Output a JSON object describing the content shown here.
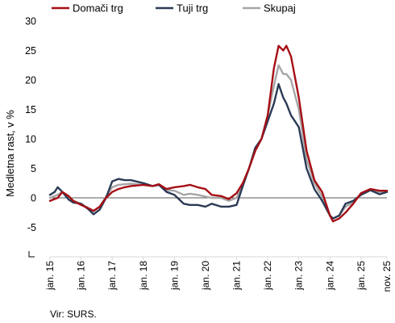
{
  "chart_data": {
    "type": "line",
    "title": "",
    "xlabel": "",
    "ylabel": "Medletna rast, v %",
    "ylim": [
      -10,
      30
    ],
    "yticks": [
      30,
      25,
      20,
      15,
      10,
      5,
      0,
      -5
    ],
    "ytick_labels": [
      "30",
      "25",
      "20",
      "15",
      "10",
      "5",
      "0",
      "-5"
    ],
    "x_start": 2015,
    "x_end": 2025.833,
    "xticks": [
      {
        "value": 2015,
        "label": "jan. 15"
      },
      {
        "value": 2016,
        "label": "jan. 16"
      },
      {
        "value": 2017,
        "label": "jan. 17"
      },
      {
        "value": 2018,
        "label": "jan. 18"
      },
      {
        "value": 2019,
        "label": "jan. 19"
      },
      {
        "value": 2020,
        "label": "jan. 20"
      },
      {
        "value": 2021,
        "label": "jan. 21"
      },
      {
        "value": 2022,
        "label": "jan. 22"
      },
      {
        "value": 2023,
        "label": "jan. 23"
      },
      {
        "value": 2024,
        "label": "jan. 24"
      },
      {
        "value": 2025,
        "label": "jan. 25"
      },
      {
        "value": 2025.833,
        "label": "nov. 25"
      }
    ],
    "grid": false,
    "legend_position": "top",
    "series": [
      {
        "name": "Domači trg",
        "color": "#a50f15",
        "points": [
          [
            2015,
            -0.5
          ],
          [
            2015.25,
            0
          ],
          [
            2015.4,
            1
          ],
          [
            2015.6,
            0.3
          ],
          [
            2015.75,
            -0.5
          ],
          [
            2016,
            -1.2
          ],
          [
            2016.25,
            -1.8
          ],
          [
            2016.4,
            -2.2
          ],
          [
            2016.6,
            -1.5
          ],
          [
            2016.8,
            0
          ],
          [
            2017,
            1
          ],
          [
            2017.2,
            1.5
          ],
          [
            2017.4,
            1.8
          ],
          [
            2017.6,
            2
          ],
          [
            2018,
            2.2
          ],
          [
            2018.3,
            2
          ],
          [
            2018.5,
            2.3
          ],
          [
            2018.75,
            1.5
          ],
          [
            2019,
            1.8
          ],
          [
            2019.3,
            2
          ],
          [
            2019.5,
            2.2
          ],
          [
            2019.75,
            1.8
          ],
          [
            2020,
            1.5
          ],
          [
            2020.2,
            0.5
          ],
          [
            2020.5,
            0.3
          ],
          [
            2020.75,
            -0.2
          ],
          [
            2021,
            0.8
          ],
          [
            2021.2,
            2.5
          ],
          [
            2021.4,
            5
          ],
          [
            2021.6,
            8
          ],
          [
            2021.8,
            10
          ],
          [
            2022,
            14
          ],
          [
            2022.2,
            22
          ],
          [
            2022.35,
            25.8
          ],
          [
            2022.5,
            25
          ],
          [
            2022.6,
            25.8
          ],
          [
            2022.75,
            24
          ],
          [
            2023,
            17
          ],
          [
            2023.25,
            8
          ],
          [
            2023.5,
            3
          ],
          [
            2023.75,
            1
          ],
          [
            2024,
            -3
          ],
          [
            2024.1,
            -4
          ],
          [
            2024.3,
            -3.5
          ],
          [
            2024.5,
            -2.5
          ],
          [
            2024.75,
            -1
          ],
          [
            2025,
            0.8
          ],
          [
            2025.3,
            1.5
          ],
          [
            2025.6,
            1.2
          ],
          [
            2025.833,
            1.2
          ]
        ]
      },
      {
        "name": "Tuji trg",
        "color": "#2b3a55",
        "points": [
          [
            2015,
            0.5
          ],
          [
            2015.15,
            1
          ],
          [
            2015.25,
            1.8
          ],
          [
            2015.4,
            1
          ],
          [
            2015.6,
            -0.3
          ],
          [
            2015.75,
            -0.8
          ],
          [
            2016,
            -1
          ],
          [
            2016.25,
            -2
          ],
          [
            2016.4,
            -2.8
          ],
          [
            2016.6,
            -2
          ],
          [
            2016.8,
            0
          ],
          [
            2017,
            2.8
          ],
          [
            2017.2,
            3.2
          ],
          [
            2017.4,
            3
          ],
          [
            2017.6,
            3
          ],
          [
            2018,
            2.5
          ],
          [
            2018.3,
            2
          ],
          [
            2018.5,
            2.2
          ],
          [
            2018.75,
            1
          ],
          [
            2019,
            0.5
          ],
          [
            2019.3,
            -1
          ],
          [
            2019.5,
            -1.2
          ],
          [
            2019.75,
            -1.2
          ],
          [
            2020,
            -1.5
          ],
          [
            2020.2,
            -1
          ],
          [
            2020.5,
            -1.5
          ],
          [
            2020.75,
            -1.5
          ],
          [
            2021,
            -1.2
          ],
          [
            2021.2,
            2
          ],
          [
            2021.4,
            5
          ],
          [
            2021.6,
            8.5
          ],
          [
            2021.8,
            10
          ],
          [
            2022,
            13
          ],
          [
            2022.2,
            16
          ],
          [
            2022.35,
            19.3
          ],
          [
            2022.5,
            17
          ],
          [
            2022.6,
            16
          ],
          [
            2022.75,
            14
          ],
          [
            2023,
            12
          ],
          [
            2023.25,
            5
          ],
          [
            2023.5,
            1.5
          ],
          [
            2023.75,
            -0.5
          ],
          [
            2024,
            -3
          ],
          [
            2024.1,
            -3.5
          ],
          [
            2024.3,
            -3
          ],
          [
            2024.5,
            -1
          ],
          [
            2024.75,
            -0.5
          ],
          [
            2025,
            0.5
          ],
          [
            2025.3,
            1.3
          ],
          [
            2025.6,
            0.6
          ],
          [
            2025.833,
            1
          ]
        ]
      },
      {
        "name": "Skupaj",
        "color": "#a6a6a6",
        "points": [
          [
            2015,
            0
          ],
          [
            2015.25,
            0.5
          ],
          [
            2015.4,
            1
          ],
          [
            2015.6,
            0
          ],
          [
            2015.75,
            -0.5
          ],
          [
            2016,
            -1
          ],
          [
            2016.25,
            -1.8
          ],
          [
            2016.4,
            -2.3
          ],
          [
            2016.6,
            -1.5
          ],
          [
            2016.8,
            0.2
          ],
          [
            2017,
            1.8
          ],
          [
            2017.2,
            2.2
          ],
          [
            2017.4,
            2.3
          ],
          [
            2017.6,
            2.4
          ],
          [
            2018,
            2.2
          ],
          [
            2018.3,
            2
          ],
          [
            2018.5,
            2.3
          ],
          [
            2018.75,
            1.3
          ],
          [
            2019,
            1.2
          ],
          [
            2019.3,
            0.5
          ],
          [
            2019.5,
            0.7
          ],
          [
            2019.75,
            0.5
          ],
          [
            2020,
            0.2
          ],
          [
            2020.2,
            0
          ],
          [
            2020.5,
            0
          ],
          [
            2020.75,
            -0.5
          ],
          [
            2021,
            0
          ],
          [
            2021.2,
            2.3
          ],
          [
            2021.4,
            5
          ],
          [
            2021.6,
            8
          ],
          [
            2021.8,
            10
          ],
          [
            2022,
            14
          ],
          [
            2022.2,
            19
          ],
          [
            2022.35,
            22.5
          ],
          [
            2022.5,
            21
          ],
          [
            2022.6,
            21
          ],
          [
            2022.75,
            20
          ],
          [
            2023,
            15
          ],
          [
            2023.25,
            6.5
          ],
          [
            2023.5,
            2.5
          ],
          [
            2023.75,
            0.2
          ],
          [
            2024,
            -3
          ],
          [
            2024.1,
            -3.5
          ],
          [
            2024.3,
            -3
          ],
          [
            2024.5,
            -1.5
          ],
          [
            2024.75,
            -0.8
          ],
          [
            2025,
            0.8
          ],
          [
            2025.3,
            1.4
          ],
          [
            2025.6,
            1
          ],
          [
            2025.833,
            1
          ]
        ]
      }
    ]
  },
  "source_note": "Vir: SURS."
}
